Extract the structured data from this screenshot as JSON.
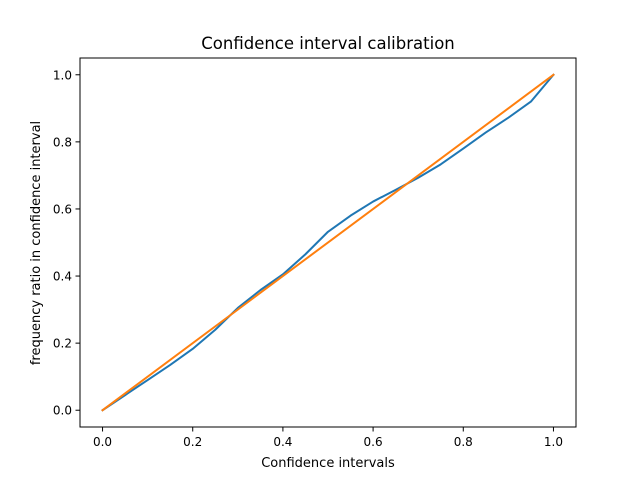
{
  "chart_data": {
    "type": "line",
    "title": "Confidence interval calibration",
    "xlabel": "Confidence intervals",
    "ylabel": "frequency ratio in confidence interval",
    "xlim": [
      -0.05,
      1.05
    ],
    "ylim": [
      -0.05,
      1.05
    ],
    "xticks": [
      "0.0",
      "0.2",
      "0.4",
      "0.6",
      "0.8",
      "1.0"
    ],
    "yticks": [
      "0.0",
      "0.2",
      "0.4",
      "0.6",
      "0.8",
      "1.0"
    ],
    "grid": false,
    "legend": "none",
    "series": [
      {
        "color": "#1f77b4",
        "x": [
          0.0,
          0.05,
          0.1,
          0.15,
          0.2,
          0.25,
          0.3,
          0.35,
          0.4,
          0.45,
          0.5,
          0.55,
          0.6,
          0.65,
          0.7,
          0.75,
          0.8,
          0.85,
          0.9,
          0.95,
          1.0
        ],
        "y": [
          0.0,
          0.045,
          0.09,
          0.135,
          0.183,
          0.24,
          0.305,
          0.358,
          0.405,
          0.465,
          0.532,
          0.58,
          0.622,
          0.657,
          0.693,
          0.733,
          0.78,
          0.828,
          0.872,
          0.92,
          1.0
        ]
      },
      {
        "color": "#ff7f0e",
        "x": [
          0.0,
          1.0
        ],
        "y": [
          0.0,
          1.0
        ]
      }
    ]
  }
}
